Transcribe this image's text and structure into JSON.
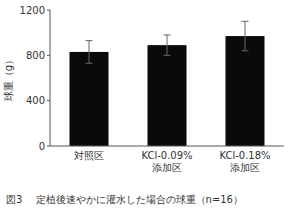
{
  "chart_data": {
    "type": "bar",
    "caption": "図3　 定植後速やかに灌水した場合の球重（n=16）",
    "ylabel": "球重（g）",
    "categories": [
      "対照区",
      "KCl-0.09%\n添加区",
      "KCl-0.18%\n添加区"
    ],
    "values": [
      830,
      890,
      970
    ],
    "errors": [
      100,
      90,
      130
    ],
    "color": "#0a0a0a",
    "ylim": [
      0,
      1200
    ],
    "yticks": [
      0,
      400,
      800,
      1200
    ],
    "grid": false
  }
}
